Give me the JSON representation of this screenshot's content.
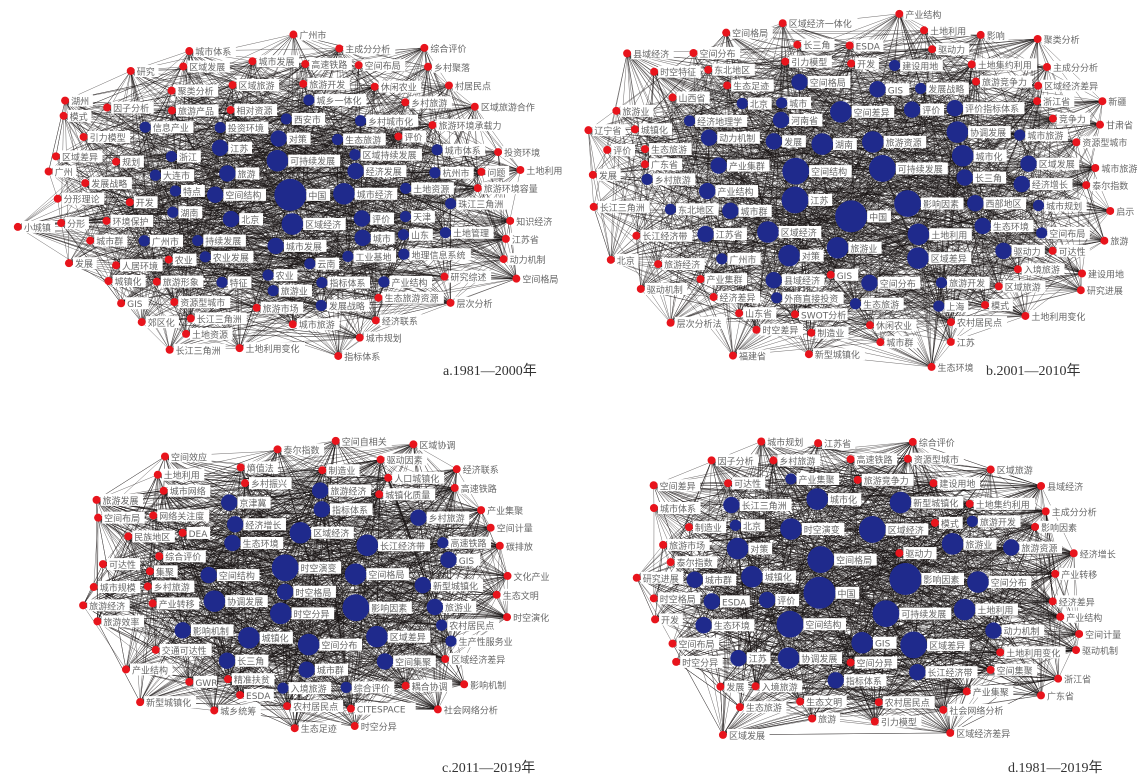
{
  "colors": {
    "red_node": "#e8141c",
    "blue_node": "#1f2a8c",
    "edge": "#1a1414"
  },
  "panels": [
    {
      "caption": "a.1981—2000年",
      "blue": [
        {
          "label": "中国",
          "size": 5
        },
        {
          "label": "区域经济",
          "size": 3
        },
        {
          "label": "可持续发展",
          "size": 3
        },
        {
          "label": "城市经济",
          "size": 3
        },
        {
          "label": "空间结构",
          "size": 2
        },
        {
          "label": "旅游",
          "size": 2
        },
        {
          "label": "北京",
          "size": 2
        },
        {
          "label": "对策",
          "size": 2
        },
        {
          "label": "城市发展",
          "size": 2
        },
        {
          "label": "经济发展",
          "size": 2
        },
        {
          "label": "评价",
          "size": 2
        },
        {
          "label": "江苏",
          "size": 2
        },
        {
          "label": "城市",
          "size": 2
        },
        {
          "label": "云南",
          "size": 1
        },
        {
          "label": "持续发展",
          "size": 1
        },
        {
          "label": "生态旅游",
          "size": 1
        },
        {
          "label": "西安市",
          "size": 1
        },
        {
          "label": "湖南",
          "size": 1
        },
        {
          "label": "天津",
          "size": 1
        },
        {
          "label": "特点",
          "size": 1
        },
        {
          "label": "土地资源",
          "size": 1
        },
        {
          "label": "工业基地",
          "size": 1
        },
        {
          "label": "农业",
          "size": 1
        },
        {
          "label": "区域持续发展",
          "size": 1
        },
        {
          "label": "指标体系",
          "size": 1
        },
        {
          "label": "投资环境",
          "size": 1
        },
        {
          "label": "农业发展",
          "size": 1
        },
        {
          "label": "山东",
          "size": 1
        },
        {
          "label": "大连市",
          "size": 1
        },
        {
          "label": "浙江",
          "size": 1
        },
        {
          "label": "乡村城市化",
          "size": 1
        },
        {
          "label": "城乡一体化",
          "size": 1
        },
        {
          "label": "杭州市",
          "size": 1
        },
        {
          "label": "产业结构",
          "size": 1
        },
        {
          "label": "地理信息系统",
          "size": 1
        },
        {
          "label": "信息产业",
          "size": 1
        },
        {
          "label": "土地管理",
          "size": 1
        },
        {
          "label": "广州市",
          "size": 1
        },
        {
          "label": "特征",
          "size": 1
        },
        {
          "label": "珠江三角洲",
          "size": 1
        },
        {
          "label": "城市体系",
          "size": 1
        },
        {
          "label": "发展战略",
          "size": 1
        },
        {
          "label": "旅游业",
          "size": 1
        }
      ],
      "red": [
        "相对资源",
        "生态旅游资源",
        "旅游开发",
        "区域旅游",
        "环境保护",
        "开发",
        "乡村旅游",
        "旅游市场",
        "旅游产品",
        "旅游环境承载力",
        "城市旅游",
        "休闲农业",
        "农业",
        "发展战略",
        "规划",
        "旅游形象",
        "旅游环境容量",
        "研究综述",
        "资源型城市",
        "聚类分析",
        "人居环境",
        "高速铁路",
        "空间布局",
        "江苏省",
        "区域旅游合作",
        "问题",
        "长江三角洲",
        "经济联系",
        "区域发展",
        "城市群",
        "引力模型",
        "投资环境",
        "村居民点",
        "分形",
        "土地利用变化",
        "分形理论",
        "城市体系",
        "乡村聚落",
        "知识经济",
        "郊区化",
        "城镇化",
        "城市规划",
        "城市发展",
        "因子分析",
        "动力机制",
        "广州市",
        "主成分分析",
        "土地资源",
        "空间格局",
        "区域差异",
        "GIS",
        "土地利用",
        "研究",
        "评价",
        "综合评价",
        "指标体系",
        "层次分析",
        "长江三角洲",
        "小城镇",
        "广州",
        "湖州",
        "发展",
        "模式"
      ]
    },
    {
      "caption": "b.2001—2010年",
      "blue": [
        {
          "label": "旅游开发",
          "size": 1
        },
        {
          "label": "发展战略",
          "size": 1
        },
        {
          "label": "北京",
          "size": 1
        },
        {
          "label": "广州市",
          "size": 1
        },
        {
          "label": "城市规划",
          "size": 1
        },
        {
          "label": "外商直接投资",
          "size": 1
        },
        {
          "label": "建设用地",
          "size": 1
        },
        {
          "label": "生态旅游",
          "size": 1
        },
        {
          "label": "乡村旅游",
          "size": 1
        },
        {
          "label": "城市旅游",
          "size": 1
        },
        {
          "label": "发展",
          "size": 2
        },
        {
          "label": "西部地区",
          "size": 2
        },
        {
          "label": "生态环境",
          "size": 2
        },
        {
          "label": "旅游资源",
          "size": 3
        },
        {
          "label": "土地利用",
          "size": 3
        },
        {
          "label": "旅游业",
          "size": 3
        },
        {
          "label": "可持续发展",
          "size": 4
        },
        {
          "label": "产业集群",
          "size": 2
        },
        {
          "label": "湖南",
          "size": 3
        },
        {
          "label": "空间结构",
          "size": 4
        },
        {
          "label": "对策",
          "size": 3
        },
        {
          "label": "江苏",
          "size": 4
        },
        {
          "label": "中国",
          "size": 5
        },
        {
          "label": "影响因素",
          "size": 4
        },
        {
          "label": "长三角",
          "size": 2
        },
        {
          "label": "区域经济",
          "size": 3
        },
        {
          "label": "评价指标体系",
          "size": 2
        },
        {
          "label": "空间差异",
          "size": 3
        },
        {
          "label": "城市化",
          "size": 3
        },
        {
          "label": "产业结构",
          "size": 2
        },
        {
          "label": "河南省",
          "size": 2
        },
        {
          "label": "协调发展",
          "size": 3
        },
        {
          "label": "江苏省",
          "size": 2
        },
        {
          "label": "区域差异",
          "size": 3
        },
        {
          "label": "空间分布",
          "size": 2
        },
        {
          "label": "经济增长",
          "size": 2
        },
        {
          "label": "GIS",
          "size": 2
        },
        {
          "label": "县域经济",
          "size": 2
        },
        {
          "label": "驱动力",
          "size": 2
        },
        {
          "label": "空间格局",
          "size": 2
        },
        {
          "label": "城市群",
          "size": 2
        },
        {
          "label": "东北地区",
          "size": 1
        },
        {
          "label": "经济地理学",
          "size": 1
        },
        {
          "label": "空间布局",
          "size": 1
        },
        {
          "label": "上海",
          "size": 1
        },
        {
          "label": "动力机制",
          "size": 2
        },
        {
          "label": "区域发展",
          "size": 2
        },
        {
          "label": "城市",
          "size": 1
        },
        {
          "label": "评价",
          "size": 2
        }
      ],
      "red": [
        "可达性",
        "竞争力",
        "区域旅游",
        "生态旅游",
        "SWOT分析",
        "产业集群",
        "开发",
        "休闲农业",
        "旅游经济",
        "旅游竞争力",
        "入境旅游",
        "城市旅游",
        "生态足迹",
        "山西省",
        "区域经济差异",
        "经济差异",
        "土地集约利用",
        "引力模型",
        "泰尔指数",
        "土地利用变化",
        "制造业",
        "农村居民点",
        "长江经济带",
        "ESDA",
        "东北地区",
        "时空差异",
        "建设用地",
        "驱动力",
        "长江三角洲",
        "长三角",
        "主成分分析",
        "资源型城市",
        "驱动机制",
        "城市群",
        "城镇化",
        "区域经济一体化",
        "土地利用",
        "空间分布",
        "研究进展",
        "新型城镇化",
        "GIS",
        "时空特征",
        "启示",
        "模式",
        "旅游业",
        "层次分析法",
        "评价",
        "旅游",
        "发展",
        "新疆",
        "福建省",
        "浙江省",
        "生态环境",
        "北京",
        "江苏",
        "县域经济",
        "广东省",
        "甘肃省",
        "聚类分析",
        "辽宁省",
        "山东省",
        "产业结构",
        "空间格局",
        "影响"
      ]
    },
    {
      "caption": "c.2011—2019年",
      "blue": [
        {
          "label": "时空演变",
          "size": 4
        },
        {
          "label": "时空分异",
          "size": 3
        },
        {
          "label": "空间格局",
          "size": 3
        },
        {
          "label": "长江经济带",
          "size": 3
        },
        {
          "label": "区域经济",
          "size": 3
        },
        {
          "label": "影响因素",
          "size": 4
        },
        {
          "label": "空间分布",
          "size": 3
        },
        {
          "label": "城镇化",
          "size": 3
        },
        {
          "label": "新型城镇化",
          "size": 2
        },
        {
          "label": "区域差异",
          "size": 3
        },
        {
          "label": "生态环境",
          "size": 2
        },
        {
          "label": "指标体系",
          "size": 2
        },
        {
          "label": "协调发展",
          "size": 3
        },
        {
          "label": "空间结构",
          "size": 2
        },
        {
          "label": "旅游业",
          "size": 2
        },
        {
          "label": "乡村旅游",
          "size": 2
        },
        {
          "label": "GIS",
          "size": 2
        },
        {
          "label": "时空格局",
          "size": 2
        },
        {
          "label": "空间集聚",
          "size": 2
        },
        {
          "label": "农村居民点",
          "size": 1
        },
        {
          "label": "高速铁路",
          "size": 1
        },
        {
          "label": "综合评价",
          "size": 1
        },
        {
          "label": "城市群",
          "size": 2
        },
        {
          "label": "经济增长",
          "size": 2
        },
        {
          "label": "入境旅游",
          "size": 1
        },
        {
          "label": "生产性服务业",
          "size": 1
        },
        {
          "label": "影响机制",
          "size": 2
        },
        {
          "label": "旅游经济",
          "size": 2
        },
        {
          "label": "京津冀",
          "size": 2
        },
        {
          "label": "长三角",
          "size": 2
        }
      ],
      "red": [
        "综合评价",
        "人口城镇化",
        "城镇化质量",
        "乡村旅游",
        "生态文明",
        "乡村振兴",
        "网络关注度",
        "DEA",
        "耦合协调",
        "区域经济差异",
        "文化产业",
        "碳排放",
        "精准扶贫",
        "交通可达性",
        "产业转移",
        "CITESPACE",
        "制造业",
        "城市网络",
        "农村居民点",
        "高速铁路",
        "时空演化",
        "民族地区",
        "空间计量",
        "ESDA",
        "GWR",
        "影响机制",
        "产业集聚",
        "驱动因素",
        "空间自相关",
        "熵值法",
        "可达性",
        "泰尔指数",
        "经济联系",
        "旅游效率",
        "城乡统筹",
        "社会网络分析",
        "城市规模",
        "时空分异",
        "土地利用",
        "旅游经济",
        "区域协调",
        "生态足迹",
        "产业结构",
        "空间布局",
        "集聚",
        "空间效应",
        "旅游发展",
        "新型城镇化"
      ]
    },
    {
      "caption": "d.1981—2019年",
      "blue": [
        {
          "label": "中国",
          "size": 5
        },
        {
          "label": "可持续发展",
          "size": 4
        },
        {
          "label": "空间格局",
          "size": 4
        },
        {
          "label": "影响因素",
          "size": 5
        },
        {
          "label": "区域经济",
          "size": 4
        },
        {
          "label": "空间结构",
          "size": 4
        },
        {
          "label": "时空演变",
          "size": 3
        },
        {
          "label": "区域差异",
          "size": 4
        },
        {
          "label": "城镇化",
          "size": 3
        },
        {
          "label": "协调发展",
          "size": 3
        },
        {
          "label": "土地利用",
          "size": 3
        },
        {
          "label": "旅游业",
          "size": 3
        },
        {
          "label": "对策",
          "size": 3
        },
        {
          "label": "评价",
          "size": 2
        },
        {
          "label": "新型城镇化",
          "size": 3
        },
        {
          "label": "GIS",
          "size": 3
        },
        {
          "label": "ESDA",
          "size": 2
        },
        {
          "label": "长江经济带",
          "size": 2
        },
        {
          "label": "城市化",
          "size": 3
        },
        {
          "label": "指标体系",
          "size": 2
        },
        {
          "label": "动力机制",
          "size": 2
        },
        {
          "label": "城市群",
          "size": 2
        },
        {
          "label": "空间分布",
          "size": 3
        },
        {
          "label": "旅游资源",
          "size": 2
        },
        {
          "label": "生态环境",
          "size": 2
        },
        {
          "label": "旅游开发",
          "size": 1
        },
        {
          "label": "产业集聚",
          "size": 1
        },
        {
          "label": "长江三角洲",
          "size": 2
        },
        {
          "label": "江苏",
          "size": 2
        },
        {
          "label": "北京",
          "size": 1
        }
      ],
      "red": [
        "旅游竞争力",
        "土地利用变化",
        "农村居民点",
        "生态文明",
        "入境旅游",
        "建设用地",
        "土地集约利用",
        "空间集聚",
        "驱动力",
        "影响因素",
        "经济差异",
        "泰尔指数",
        "时空格局",
        "高速铁路",
        "产业转移",
        "社会网络分析",
        "制造业",
        "资源型城市",
        "时空分异",
        "产业集聚",
        "引力模型",
        "可达性",
        "空间分异",
        "城市体系",
        "乡村旅游",
        "发展",
        "旅游市场",
        "生态旅游",
        "区域旅游",
        "开发",
        "模式",
        "旅游",
        "产业结构",
        "空间布局",
        "研究进展",
        "区域经济差异",
        "综合评价",
        "主成分分析",
        "因子分析",
        "经济增长",
        "空间差异",
        "空间计量",
        "城市规划",
        "县域经济",
        "驱动机制",
        "广东省",
        "浙江省",
        "区域发展",
        "江苏省"
      ]
    }
  ]
}
